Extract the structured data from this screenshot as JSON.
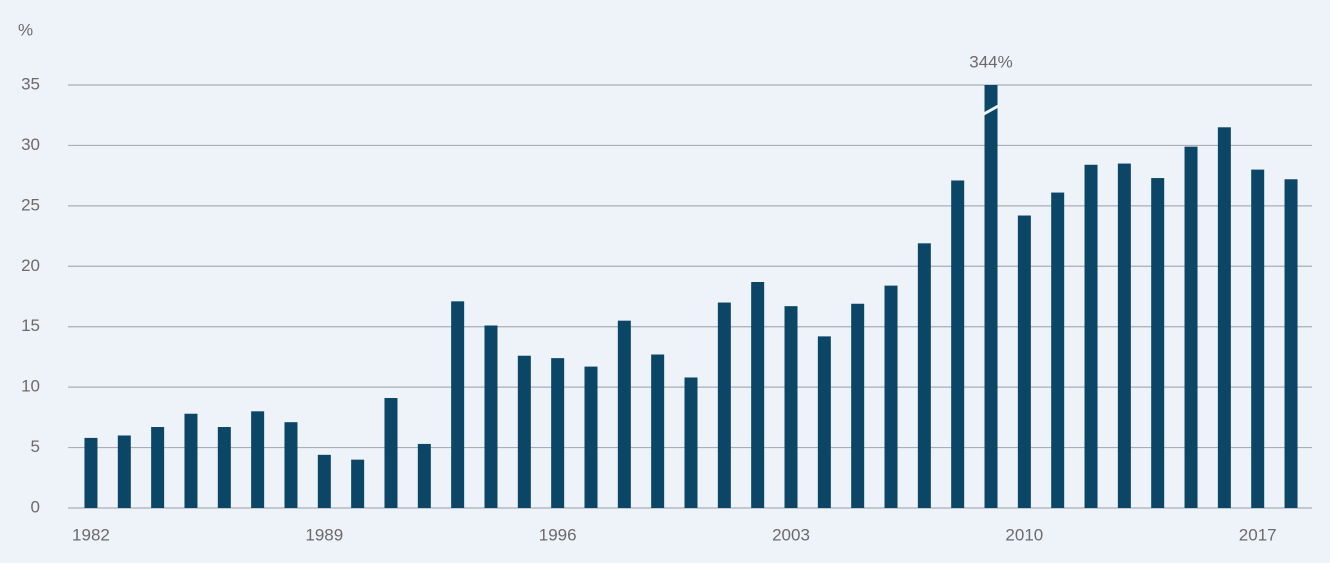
{
  "chart_data": {
    "type": "bar",
    "y_label": "%",
    "categories": [
      "1982",
      null,
      null,
      null,
      null,
      null,
      null,
      "1989",
      null,
      null,
      null,
      null,
      null,
      null,
      "1996",
      null,
      null,
      null,
      null,
      null,
      null,
      "2003",
      null,
      null,
      null,
      null,
      null,
      null,
      "2010",
      null,
      null,
      null,
      null,
      null,
      null,
      "2017",
      null
    ],
    "values": [
      5.8,
      6.0,
      6.7,
      7.8,
      6.7,
      8.0,
      7.1,
      4.4,
      4.0,
      9.1,
      5.3,
      17.1,
      15.1,
      12.6,
      12.4,
      11.7,
      15.5,
      12.7,
      10.8,
      17.0,
      18.7,
      16.7,
      14.2,
      16.9,
      18.4,
      21.9,
      27.1,
      344,
      24.2,
      26.1,
      28.4,
      28.5,
      27.3,
      29.9,
      31.5,
      28.0,
      27.2
    ],
    "value_labels": [
      null,
      null,
      null,
      null,
      null,
      null,
      null,
      null,
      null,
      null,
      null,
      null,
      null,
      null,
      null,
      null,
      null,
      null,
      null,
      null,
      null,
      null,
      null,
      null,
      null,
      null,
      null,
      "344%",
      null,
      null,
      null,
      null,
      null,
      null,
      null,
      null,
      null
    ],
    "color": "#0b4667",
    "ylim": [
      0,
      35
    ],
    "yticks": [
      0,
      5,
      10,
      15,
      20,
      25,
      30,
      35
    ],
    "grid": true
  }
}
